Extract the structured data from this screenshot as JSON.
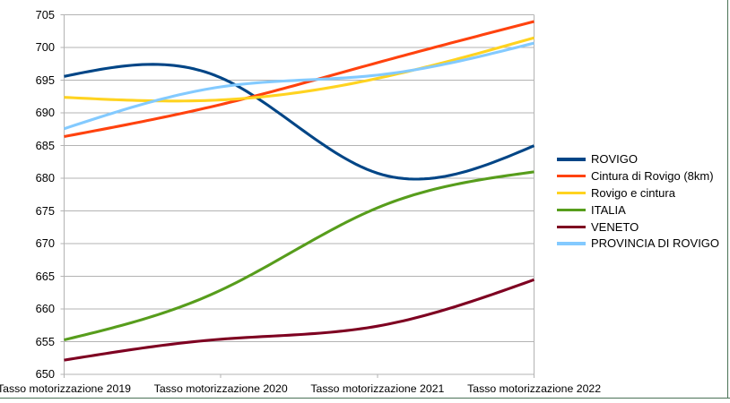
{
  "chart_data": {
    "type": "line",
    "smooth": true,
    "title": "",
    "xlabel": "",
    "ylabel": "",
    "ylim": [
      650,
      705
    ],
    "ytick_step": 5,
    "grid": true,
    "legend_position": "right",
    "categories": [
      "Tasso motorizzazione 2019",
      "Tasso motorizzazione 2020",
      "Tasso motorizzazione 2021",
      "Tasso motorizzazione 2022"
    ],
    "series": [
      {
        "name": "ROVIGO",
        "color": "#004586",
        "values": [
          695.6,
          695.4,
          680.8,
          685.0
        ]
      },
      {
        "name": "Cintura di Rovigo (8km)",
        "color": "#ff420e",
        "values": [
          686.4,
          691.3,
          697.7,
          704.0
        ]
      },
      {
        "name": "Rovigo e cintura",
        "color": "#ffd320",
        "values": [
          692.4,
          692.0,
          695.3,
          701.5
        ]
      },
      {
        "name": "ITALIA",
        "color": "#579d1c",
        "values": [
          655.3,
          662.9,
          675.5,
          681.0
        ]
      },
      {
        "name": "VENETO",
        "color": "#7e0021",
        "values": [
          652.2,
          655.4,
          657.4,
          664.5
        ]
      },
      {
        "name": "PROVINCIA DI ROVIGO",
        "color": "#83caff",
        "values": [
          687.6,
          694.0,
          695.8,
          700.7
        ]
      }
    ]
  },
  "y_axis": {
    "tick_labels": [
      "705",
      "700",
      "695",
      "690",
      "685",
      "680",
      "675",
      "670",
      "665",
      "660",
      "655",
      "650"
    ]
  },
  "colors": {
    "gridline": "#b3b3b3",
    "axis": "#b3b3b3",
    "background": "#ffffff",
    "cell_border_green": "#4a7256",
    "text": "#000000"
  }
}
